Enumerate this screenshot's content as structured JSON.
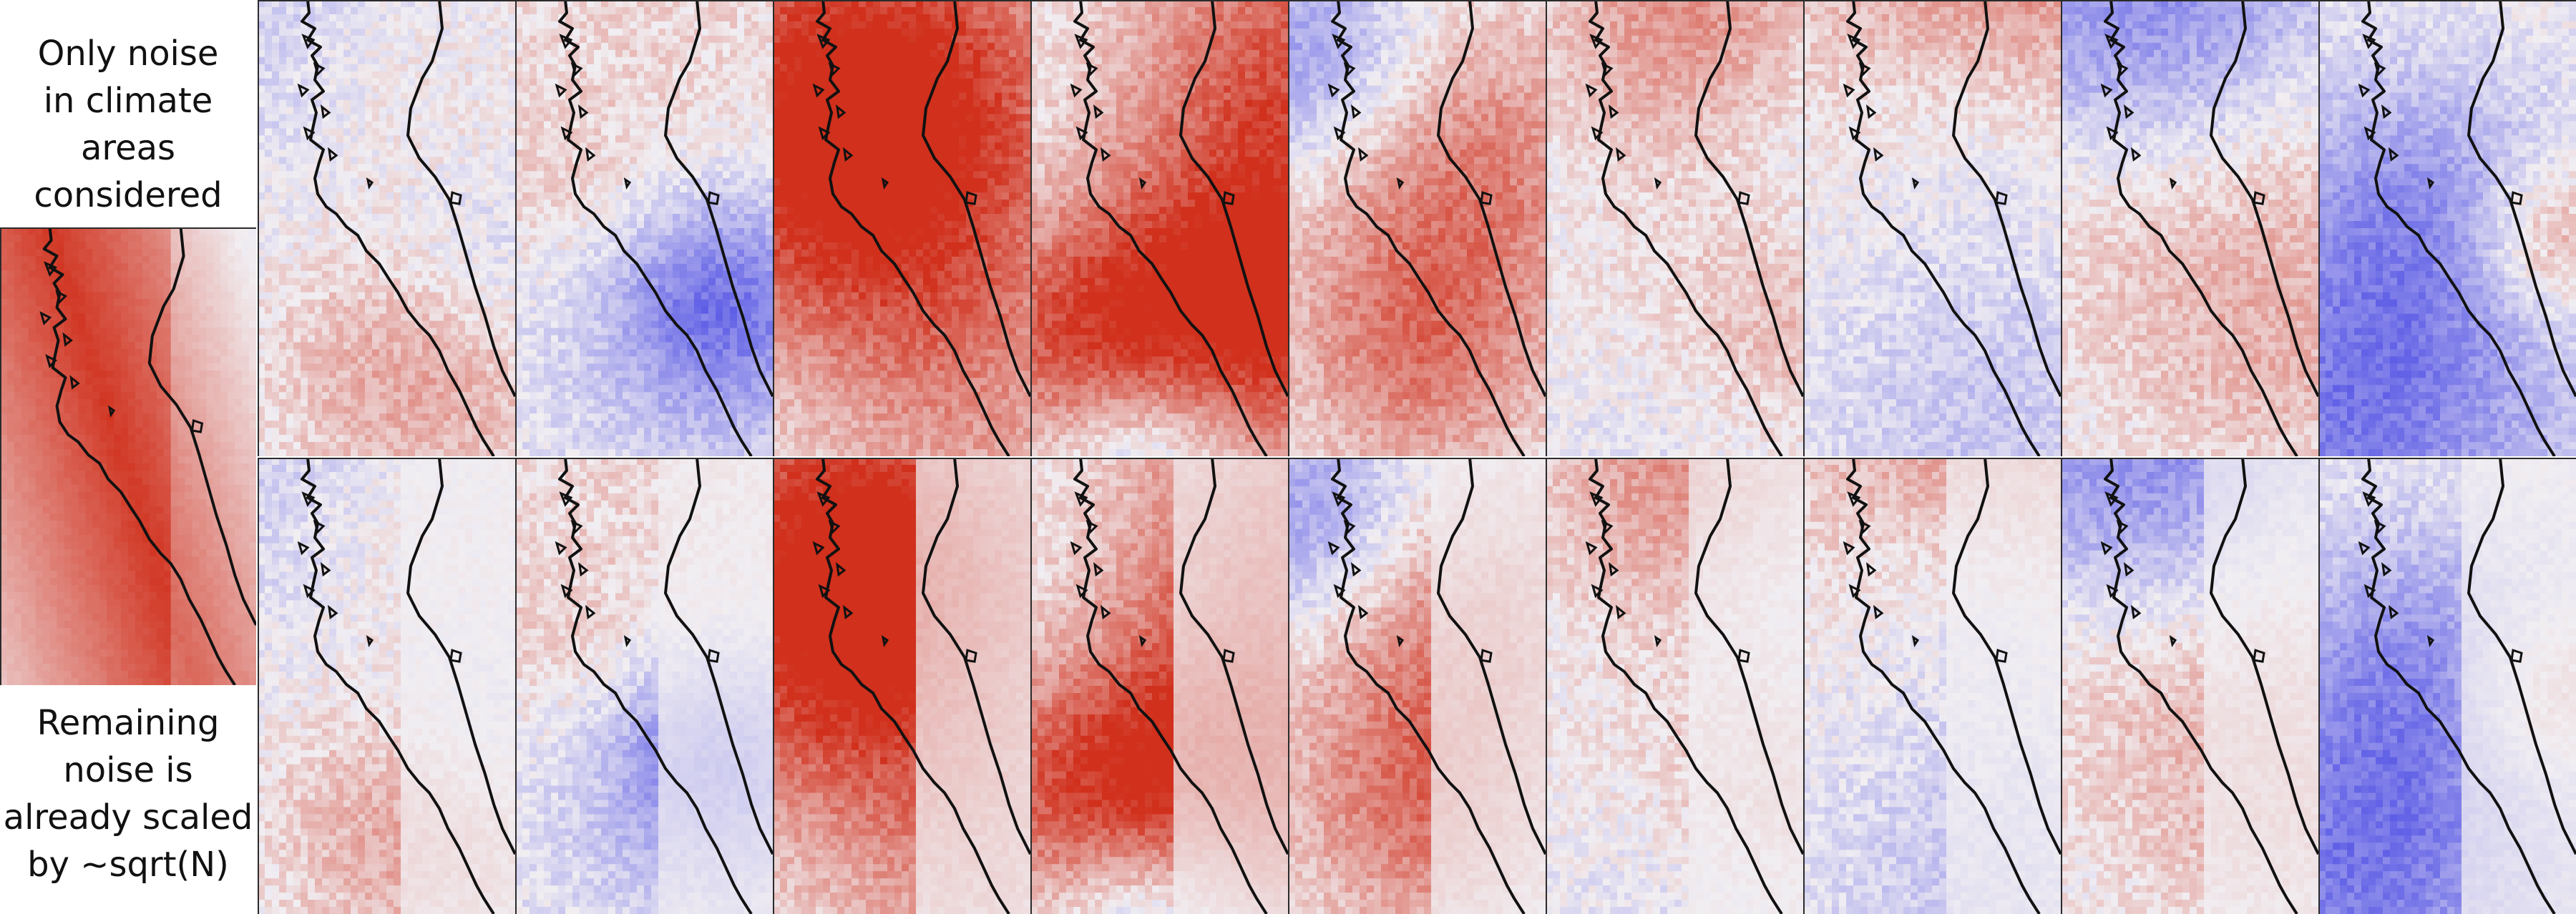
{
  "captions": {
    "top": [
      "Only noise",
      "in climate",
      "areas",
      "considered"
    ],
    "bottom": [
      "Remaining",
      "noise is",
      "already scaled",
      "by ~sqrt(N)"
    ]
  },
  "colormap": {
    "name": "diverging-blue-white-red",
    "negative": "#5a5ae6",
    "neutral": "#f1eef2",
    "positive": "#d0301c"
  },
  "panels": {
    "reference": {
      "icon": "noise-magnitude-map"
    },
    "row_1_count": 9,
    "row_2_count": 9
  }
}
